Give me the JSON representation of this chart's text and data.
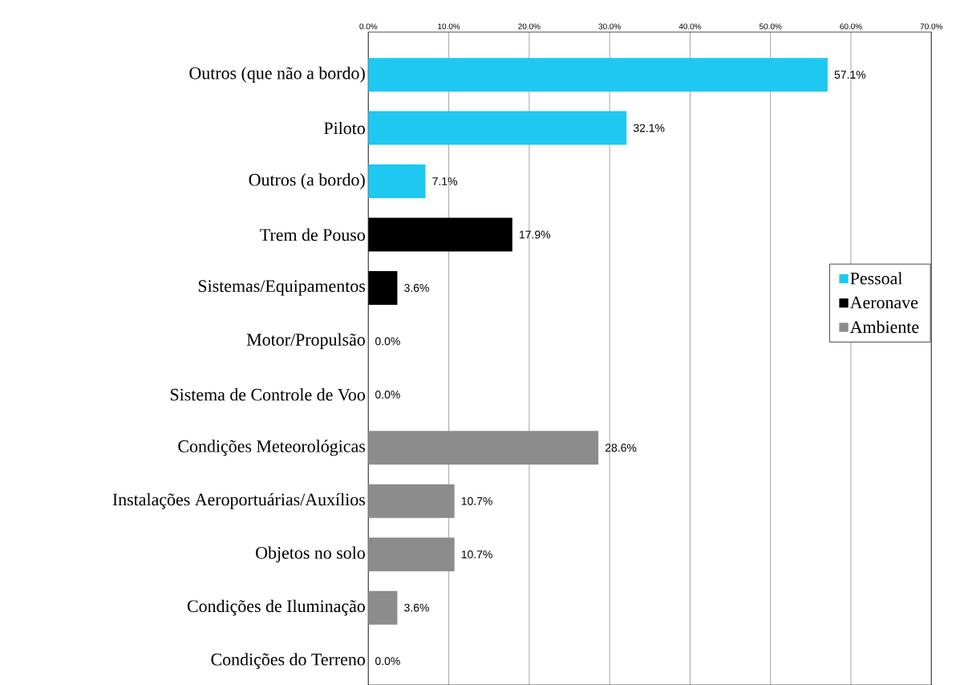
{
  "chart_data": {
    "type": "bar",
    "orientation": "horizontal",
    "categories": [
      "Outros (que não a bordo)",
      "Piloto",
      "Outros (a bordo)",
      "Trem de Pouso",
      "Sistemas/Equipamentos",
      "Motor/Propulsão",
      "Sistema de Controle de Voo",
      "Condições Meteorológicas",
      "Instalações Aeroportuárias/Auxílios",
      "Objetos no solo",
      "Condições de Iluminação",
      "Condições do Terreno"
    ],
    "series": [
      {
        "name": "Pessoal",
        "color": "#1ec8f0",
        "values": [
          57.1,
          32.1,
          7.1,
          null,
          null,
          null,
          null,
          null,
          null,
          null,
          null,
          null
        ],
        "value_labels": [
          "57.1%",
          "32.1%",
          "7.1%",
          null,
          null,
          null,
          null,
          null,
          null,
          null,
          null,
          null
        ]
      },
      {
        "name": "Aeronave",
        "color": "#000000",
        "values": [
          null,
          null,
          null,
          17.9,
          3.6,
          0.0,
          0.0,
          null,
          null,
          null,
          null,
          null
        ],
        "value_labels": [
          null,
          null,
          null,
          "17.9%",
          "3.6%",
          "0.0%",
          "0.0%",
          null,
          null,
          null,
          null,
          null
        ]
      },
      {
        "name": "Ambiente",
        "color": "#8c8c8c",
        "values": [
          null,
          null,
          null,
          null,
          null,
          null,
          null,
          28.6,
          10.7,
          10.7,
          3.6,
          0.0
        ],
        "value_labels": [
          null,
          null,
          null,
          null,
          null,
          null,
          null,
          "28.6%",
          "10.7%",
          "10.7%",
          "3.6%",
          "0.0%"
        ]
      }
    ],
    "xlim": [
      0,
      70
    ],
    "xticks": [
      {
        "value": 0,
        "label": "0.0%"
      },
      {
        "value": 10,
        "label": "10.0%"
      },
      {
        "value": 20,
        "label": "20.0%"
      },
      {
        "value": 30,
        "label": "30.0%"
      },
      {
        "value": 40,
        "label": "40.0%"
      },
      {
        "value": 50,
        "label": "50.0%"
      },
      {
        "value": 60,
        "label": "60.0%"
      },
      {
        "value": 70,
        "label": "70.0%"
      }
    ],
    "grid": "x",
    "legend": "right"
  }
}
